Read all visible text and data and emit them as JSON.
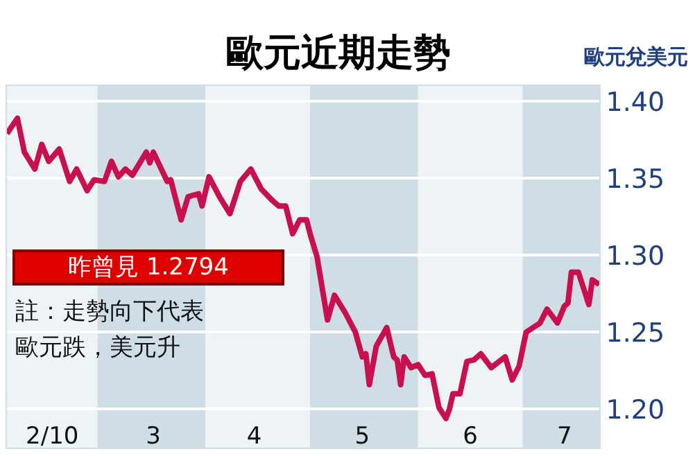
{
  "chart_data": {
    "type": "line",
    "title": "歐元近期走勢",
    "ylabel": "歐元兌美元",
    "x": [
      "2010-02-03",
      "2010-02-06",
      "2010-02-08",
      "2010-02-11",
      "2010-02-13",
      "2010-02-15",
      "2010-02-18",
      "2010-02-21",
      "2010-02-23",
      "2010-02-26",
      "2010-02-28",
      "2010-03-03",
      "2010-03-05",
      "2010-03-07",
      "2010-03-09",
      "2010-03-11",
      "2010-03-15",
      "2010-03-16",
      "2010-03-17",
      "2010-03-21",
      "2010-03-22",
      "2010-03-25",
      "2010-03-27",
      "2010-03-30",
      "2010-03-31",
      "2010-04-02",
      "2010-04-05",
      "2010-04-08",
      "2010-04-11",
      "2010-04-14",
      "2010-04-17",
      "2010-04-20",
      "2010-04-22",
      "2010-04-24",
      "2010-04-26",
      "2010-04-28",
      "2010-04-30",
      "2010-05-01",
      "2010-05-03",
      "2010-05-06",
      "2010-05-08",
      "2010-05-11",
      "2010-05-14",
      "2010-05-16",
      "2010-05-17",
      "2010-05-18",
      "2010-05-20",
      "2010-05-23",
      "2010-05-25",
      "2010-05-26",
      "2010-05-27",
      "2010-05-28",
      "2010-05-30",
      "2010-06-01",
      "2010-06-03",
      "2010-06-05",
      "2010-06-07",
      "2010-06-09",
      "2010-06-10",
      "2010-06-11",
      "2010-06-13",
      "2010-06-15",
      "2010-06-17",
      "2010-06-19",
      "2010-06-22",
      "2010-06-26",
      "2010-06-28",
      "2010-06-30",
      "2010-07-02",
      "2010-07-04",
      "2010-07-06",
      "2010-07-08",
      "2010-07-11",
      "2010-07-13",
      "2010-07-14",
      "2010-07-15",
      "2010-07-17",
      "2010-07-20",
      "2010-07-21",
      "2010-07-23"
    ],
    "series": [
      {
        "color": "#c8104f",
        "values": [
          1.379,
          1.389,
          1.367,
          1.356,
          1.372,
          1.361,
          1.369,
          1.348,
          1.356,
          1.342,
          1.349,
          1.348,
          1.361,
          1.351,
          1.356,
          1.352,
          1.367,
          1.36,
          1.367,
          1.348,
          1.349,
          1.323,
          1.338,
          1.34,
          1.332,
          1.351,
          1.338,
          1.327,
          1.348,
          1.356,
          1.343,
          1.336,
          1.332,
          1.332,
          1.314,
          1.323,
          1.323,
          1.314,
          1.299,
          1.258,
          1.274,
          1.263,
          1.25,
          1.234,
          1.236,
          1.216,
          1.241,
          1.253,
          1.234,
          1.232,
          1.216,
          1.234,
          1.227,
          1.229,
          1.222,
          1.223,
          1.201,
          1.194,
          1.2,
          1.21,
          1.21,
          1.231,
          1.232,
          1.236,
          1.227,
          1.234,
          1.219,
          1.228,
          1.25,
          1.253,
          1.256,
          1.265,
          1.256,
          1.267,
          1.269,
          1.289,
          1.289,
          1.268,
          1.284,
          1.281
        ]
      }
    ],
    "xlim": [
      "2010-02-03",
      "2010-07-23"
    ],
    "xticks": [
      {
        "value": "2010-02-16",
        "label": "2/10"
      },
      {
        "value": "2010-03-17",
        "label": "3"
      },
      {
        "value": "2010-04-15",
        "label": "4"
      },
      {
        "value": "2010-05-16",
        "label": "5"
      },
      {
        "value": "2010-06-16",
        "label": "6"
      },
      {
        "value": "2010-07-13",
        "label": "7"
      }
    ],
    "ylim": [
      1.175,
      1.41
    ],
    "yticks": [
      {
        "value": 1.2,
        "label": "1.20"
      },
      {
        "value": 1.25,
        "label": "1.25"
      },
      {
        "value": 1.3,
        "label": "1.30"
      },
      {
        "value": 1.35,
        "label": "1.35"
      },
      {
        "value": 1.4,
        "label": "1.40"
      }
    ],
    "bands": [
      {
        "axis": "x",
        "from": "2010-02-03",
        "to": "2010-03-01",
        "color": "#eef4f6"
      },
      {
        "axis": "x",
        "from": "2010-03-01",
        "to": "2010-04-01",
        "color": "#cfdde6"
      },
      {
        "axis": "x",
        "from": "2010-04-01",
        "to": "2010-05-01",
        "color": "#eef4f6"
      },
      {
        "axis": "x",
        "from": "2010-05-01",
        "to": "2010-06-01",
        "color": "#cfdde6"
      },
      {
        "axis": "x",
        "from": "2010-06-01",
        "to": "2010-07-01",
        "color": "#eef4f6"
      },
      {
        "axis": "x",
        "from": "2010-07-01",
        "to": "2010-07-23",
        "color": "#cfdde6"
      }
    ],
    "annotations": [
      "昨曾見 1.2794",
      "註：走勢向下代表",
      "歐元跌，美元升"
    ],
    "grid": "y",
    "line_style": "solid",
    "marker": "none"
  }
}
